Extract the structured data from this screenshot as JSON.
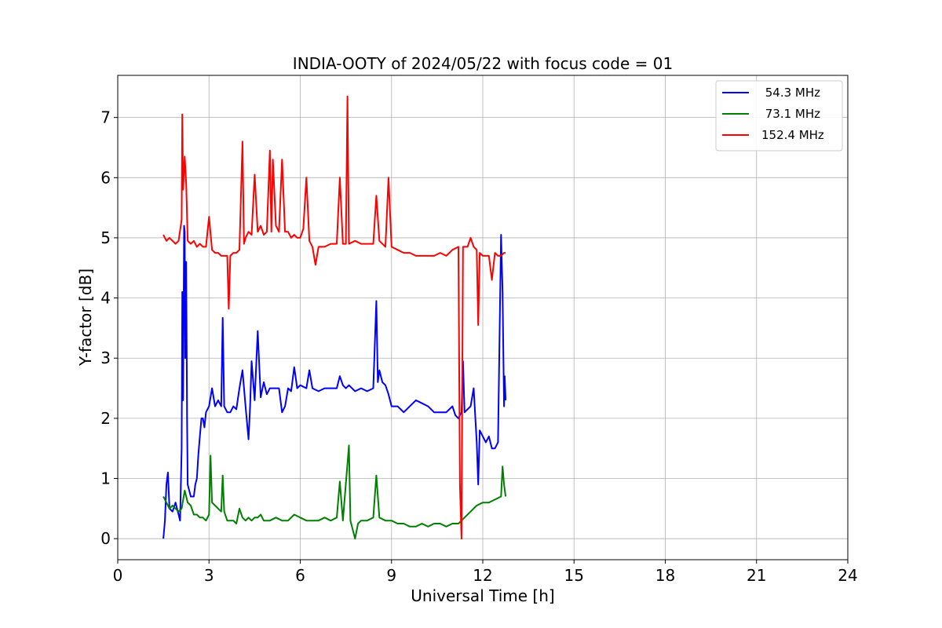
{
  "chart_data": {
    "type": "line",
    "title": "INDIA-OOTY of 2024/05/22 with focus code = 01",
    "xlabel": "Universal Time [h]",
    "ylabel": "Y-factor [dB]",
    "xlim": [
      0,
      24
    ],
    "ylim": [
      -0.35,
      7.7
    ],
    "xticks": [
      0,
      3,
      6,
      9,
      12,
      15,
      18,
      21,
      24
    ],
    "xtick_labels": [
      "0",
      "3",
      "6",
      "9",
      "12",
      "15",
      "18",
      "21",
      "24"
    ],
    "yticks": [
      0,
      1,
      2,
      3,
      4,
      5,
      6,
      7
    ],
    "ytick_labels": [
      "0",
      "1",
      "2",
      "3",
      "4",
      "5",
      "6",
      "7"
    ],
    "grid": true,
    "legend_position": "top-right",
    "series": [
      {
        "name": " 54.3 MHz",
        "color": "#0000ff",
        "points": [
          [
            1.5,
            0.0
          ],
          [
            1.55,
            0.3
          ],
          [
            1.6,
            0.9
          ],
          [
            1.65,
            1.1
          ],
          [
            1.7,
            0.5
          ],
          [
            1.8,
            0.45
          ],
          [
            1.9,
            0.6
          ],
          [
            2.0,
            0.4
          ],
          [
            2.05,
            0.3
          ],
          [
            2.1,
            1.5
          ],
          [
            2.12,
            4.1
          ],
          [
            2.15,
            2.3
          ],
          [
            2.18,
            5.2
          ],
          [
            2.2,
            5.1
          ],
          [
            2.22,
            3.0
          ],
          [
            2.25,
            4.6
          ],
          [
            2.28,
            2.0
          ],
          [
            2.3,
            0.9
          ],
          [
            2.4,
            0.7
          ],
          [
            2.5,
            0.7
          ],
          [
            2.55,
            0.9
          ],
          [
            2.6,
            1.0
          ],
          [
            2.65,
            1.4
          ],
          [
            2.7,
            1.7
          ],
          [
            2.75,
            2.0
          ],
          [
            2.8,
            2.0
          ],
          [
            2.85,
            1.85
          ],
          [
            2.9,
            2.1
          ],
          [
            3.0,
            2.2
          ],
          [
            3.1,
            2.5
          ],
          [
            3.2,
            2.2
          ],
          [
            3.3,
            2.3
          ],
          [
            3.4,
            2.2
          ],
          [
            3.45,
            3.67
          ],
          [
            3.5,
            2.2
          ],
          [
            3.6,
            2.1
          ],
          [
            3.7,
            2.1
          ],
          [
            3.8,
            2.2
          ],
          [
            3.9,
            2.15
          ],
          [
            4.0,
            2.5
          ],
          [
            4.1,
            2.8
          ],
          [
            4.2,
            2.2
          ],
          [
            4.3,
            1.65
          ],
          [
            4.35,
            2.2
          ],
          [
            4.4,
            2.95
          ],
          [
            4.5,
            2.3
          ],
          [
            4.6,
            3.45
          ],
          [
            4.7,
            2.35
          ],
          [
            4.8,
            2.6
          ],
          [
            4.9,
            2.4
          ],
          [
            5.0,
            2.5
          ],
          [
            5.1,
            2.5
          ],
          [
            5.2,
            2.5
          ],
          [
            5.3,
            2.5
          ],
          [
            5.4,
            2.1
          ],
          [
            5.5,
            2.2
          ],
          [
            5.6,
            2.5
          ],
          [
            5.7,
            2.45
          ],
          [
            5.8,
            2.85
          ],
          [
            5.9,
            2.5
          ],
          [
            6.0,
            2.55
          ],
          [
            6.2,
            2.5
          ],
          [
            6.3,
            2.8
          ],
          [
            6.4,
            2.5
          ],
          [
            6.6,
            2.45
          ],
          [
            6.8,
            2.5
          ],
          [
            7.0,
            2.5
          ],
          [
            7.2,
            2.5
          ],
          [
            7.3,
            2.7
          ],
          [
            7.4,
            2.55
          ],
          [
            7.5,
            2.5
          ],
          [
            7.6,
            2.55
          ],
          [
            7.8,
            2.45
          ],
          [
            8.0,
            2.5
          ],
          [
            8.2,
            2.45
          ],
          [
            8.4,
            2.5
          ],
          [
            8.5,
            3.95
          ],
          [
            8.55,
            2.6
          ],
          [
            8.6,
            2.8
          ],
          [
            8.7,
            2.6
          ],
          [
            8.8,
            2.55
          ],
          [
            8.9,
            2.4
          ],
          [
            9.0,
            2.2
          ],
          [
            9.2,
            2.2
          ],
          [
            9.4,
            2.1
          ],
          [
            9.6,
            2.2
          ],
          [
            9.8,
            2.3
          ],
          [
            10.0,
            2.25
          ],
          [
            10.2,
            2.2
          ],
          [
            10.4,
            2.1
          ],
          [
            10.6,
            2.1
          ],
          [
            10.8,
            2.1
          ],
          [
            11.0,
            2.2
          ],
          [
            11.1,
            2.05
          ],
          [
            11.2,
            2.0
          ],
          [
            11.3,
            2.1
          ],
          [
            11.35,
            2.95
          ],
          [
            11.4,
            2.1
          ],
          [
            11.6,
            2.2
          ],
          [
            11.7,
            2.5
          ],
          [
            11.8,
            1.6
          ],
          [
            11.85,
            0.9
          ],
          [
            11.9,
            1.8
          ],
          [
            12.0,
            1.7
          ],
          [
            12.1,
            1.6
          ],
          [
            12.2,
            1.7
          ],
          [
            12.3,
            1.5
          ],
          [
            12.4,
            1.5
          ],
          [
            12.5,
            1.6
          ],
          [
            12.55,
            3.3
          ],
          [
            12.6,
            5.05
          ],
          [
            12.65,
            4.1
          ],
          [
            12.7,
            2.2
          ],
          [
            12.72,
            2.7
          ],
          [
            12.75,
            2.3
          ]
        ]
      },
      {
        "name": " 73.1 MHz",
        "color": "#008000",
        "points": [
          [
            1.5,
            0.7
          ],
          [
            1.6,
            0.6
          ],
          [
            1.7,
            0.5
          ],
          [
            1.8,
            0.55
          ],
          [
            1.9,
            0.5
          ],
          [
            2.0,
            0.45
          ],
          [
            2.1,
            0.5
          ],
          [
            2.2,
            0.8
          ],
          [
            2.3,
            0.6
          ],
          [
            2.4,
            0.55
          ],
          [
            2.5,
            0.4
          ],
          [
            2.6,
            0.4
          ],
          [
            2.7,
            0.35
          ],
          [
            2.8,
            0.35
          ],
          [
            2.9,
            0.3
          ],
          [
            3.0,
            0.4
          ],
          [
            3.05,
            1.38
          ],
          [
            3.1,
            0.6
          ],
          [
            3.2,
            0.55
          ],
          [
            3.3,
            0.5
          ],
          [
            3.4,
            0.45
          ],
          [
            3.45,
            1.05
          ],
          [
            3.5,
            0.45
          ],
          [
            3.6,
            0.3
          ],
          [
            3.7,
            0.3
          ],
          [
            3.8,
            0.3
          ],
          [
            3.9,
            0.25
          ],
          [
            4.0,
            0.5
          ],
          [
            4.1,
            0.35
          ],
          [
            4.2,
            0.3
          ],
          [
            4.3,
            0.35
          ],
          [
            4.4,
            0.3
          ],
          [
            4.5,
            0.35
          ],
          [
            4.6,
            0.35
          ],
          [
            4.7,
            0.4
          ],
          [
            4.8,
            0.3
          ],
          [
            5.0,
            0.3
          ],
          [
            5.2,
            0.35
          ],
          [
            5.4,
            0.3
          ],
          [
            5.6,
            0.3
          ],
          [
            5.8,
            0.4
          ],
          [
            6.0,
            0.35
          ],
          [
            6.2,
            0.3
          ],
          [
            6.4,
            0.3
          ],
          [
            6.6,
            0.3
          ],
          [
            6.8,
            0.35
          ],
          [
            7.0,
            0.3
          ],
          [
            7.2,
            0.35
          ],
          [
            7.3,
            0.95
          ],
          [
            7.4,
            0.3
          ],
          [
            7.6,
            1.55
          ],
          [
            7.65,
            0.3
          ],
          [
            7.8,
            0.0
          ],
          [
            7.9,
            0.25
          ],
          [
            8.0,
            0.3
          ],
          [
            8.2,
            0.3
          ],
          [
            8.4,
            0.35
          ],
          [
            8.5,
            1.05
          ],
          [
            8.6,
            0.35
          ],
          [
            8.8,
            0.3
          ],
          [
            9.0,
            0.3
          ],
          [
            9.2,
            0.25
          ],
          [
            9.4,
            0.25
          ],
          [
            9.6,
            0.2
          ],
          [
            9.8,
            0.2
          ],
          [
            10.0,
            0.25
          ],
          [
            10.2,
            0.2
          ],
          [
            10.4,
            0.25
          ],
          [
            10.6,
            0.25
          ],
          [
            10.8,
            0.2
          ],
          [
            11.0,
            0.25
          ],
          [
            11.2,
            0.25
          ],
          [
            11.3,
            0.3
          ],
          [
            11.4,
            0.35
          ],
          [
            11.6,
            0.45
          ],
          [
            11.8,
            0.55
          ],
          [
            12.0,
            0.6
          ],
          [
            12.2,
            0.6
          ],
          [
            12.4,
            0.65
          ],
          [
            12.6,
            0.7
          ],
          [
            12.65,
            1.2
          ],
          [
            12.7,
            0.9
          ],
          [
            12.75,
            0.7
          ]
        ]
      },
      {
        "name": "152.4 MHz",
        "color": "#ff0000",
        "points": [
          [
            1.5,
            5.05
          ],
          [
            1.6,
            4.95
          ],
          [
            1.7,
            5.0
          ],
          [
            1.8,
            4.95
          ],
          [
            1.9,
            4.9
          ],
          [
            2.0,
            4.95
          ],
          [
            2.1,
            5.3
          ],
          [
            2.12,
            7.05
          ],
          [
            2.15,
            5.8
          ],
          [
            2.2,
            6.35
          ],
          [
            2.25,
            5.9
          ],
          [
            2.3,
            4.95
          ],
          [
            2.4,
            4.9
          ],
          [
            2.5,
            4.95
          ],
          [
            2.6,
            4.85
          ],
          [
            2.7,
            4.9
          ],
          [
            2.8,
            4.85
          ],
          [
            2.9,
            4.85
          ],
          [
            3.0,
            5.35
          ],
          [
            3.1,
            4.8
          ],
          [
            3.2,
            4.75
          ],
          [
            3.3,
            4.75
          ],
          [
            3.4,
            4.7
          ],
          [
            3.5,
            4.7
          ],
          [
            3.6,
            4.7
          ],
          [
            3.65,
            3.82
          ],
          [
            3.7,
            4.7
          ],
          [
            3.8,
            4.75
          ],
          [
            3.9,
            4.75
          ],
          [
            4.0,
            4.8
          ],
          [
            4.1,
            6.6
          ],
          [
            4.15,
            4.9
          ],
          [
            4.2,
            5.0
          ],
          [
            4.3,
            5.1
          ],
          [
            4.4,
            5.05
          ],
          [
            4.5,
            6.05
          ],
          [
            4.6,
            5.1
          ],
          [
            4.7,
            5.2
          ],
          [
            4.8,
            5.05
          ],
          [
            4.9,
            5.1
          ],
          [
            5.0,
            6.45
          ],
          [
            5.05,
            5.1
          ],
          [
            5.1,
            6.3
          ],
          [
            5.2,
            5.2
          ],
          [
            5.3,
            5.1
          ],
          [
            5.4,
            6.3
          ],
          [
            5.5,
            5.1
          ],
          [
            5.6,
            5.1
          ],
          [
            5.7,
            5.0
          ],
          [
            5.8,
            5.05
          ],
          [
            5.9,
            5.0
          ],
          [
            6.0,
            5.0
          ],
          [
            6.1,
            5.15
          ],
          [
            6.2,
            6.0
          ],
          [
            6.3,
            4.95
          ],
          [
            6.4,
            4.85
          ],
          [
            6.5,
            4.55
          ],
          [
            6.6,
            4.85
          ],
          [
            6.8,
            4.85
          ],
          [
            7.0,
            4.9
          ],
          [
            7.2,
            4.9
          ],
          [
            7.3,
            6.0
          ],
          [
            7.4,
            4.9
          ],
          [
            7.5,
            4.9
          ],
          [
            7.55,
            7.35
          ],
          [
            7.6,
            4.9
          ],
          [
            7.8,
            4.95
          ],
          [
            8.0,
            4.9
          ],
          [
            8.2,
            4.9
          ],
          [
            8.4,
            4.9
          ],
          [
            8.5,
            5.7
          ],
          [
            8.6,
            4.95
          ],
          [
            8.8,
            4.85
          ],
          [
            8.9,
            6.0
          ],
          [
            9.0,
            4.85
          ],
          [
            9.2,
            4.8
          ],
          [
            9.4,
            4.75
          ],
          [
            9.6,
            4.75
          ],
          [
            9.8,
            4.7
          ],
          [
            10.0,
            4.7
          ],
          [
            10.2,
            4.7
          ],
          [
            10.4,
            4.7
          ],
          [
            10.6,
            4.75
          ],
          [
            10.8,
            4.7
          ],
          [
            11.0,
            4.8
          ],
          [
            11.2,
            4.85
          ],
          [
            11.25,
            0.9
          ],
          [
            11.3,
            0.0
          ],
          [
            11.35,
            4.85
          ],
          [
            11.5,
            4.85
          ],
          [
            11.6,
            5.0
          ],
          [
            11.7,
            4.85
          ],
          [
            11.8,
            4.8
          ],
          [
            11.85,
            3.55
          ],
          [
            11.9,
            4.75
          ],
          [
            12.0,
            4.7
          ],
          [
            12.2,
            4.7
          ],
          [
            12.3,
            4.3
          ],
          [
            12.4,
            4.75
          ],
          [
            12.5,
            4.7
          ],
          [
            12.6,
            4.7
          ],
          [
            12.7,
            4.75
          ],
          [
            12.75,
            4.75
          ]
        ]
      }
    ]
  }
}
